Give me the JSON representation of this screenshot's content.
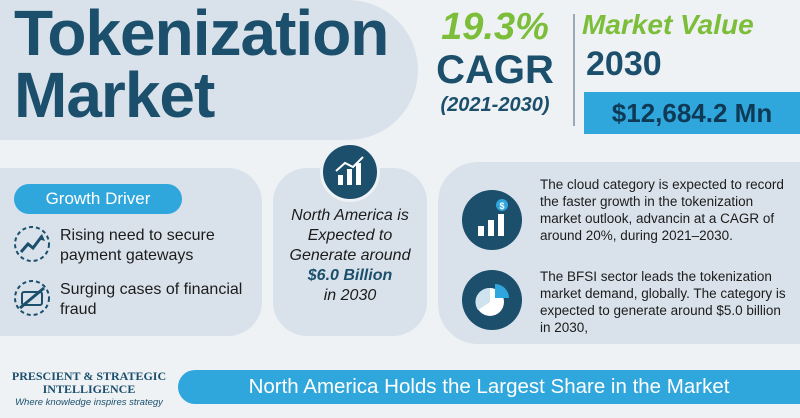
{
  "header": {
    "title": "Tokenization Market"
  },
  "cagr": {
    "percent": "19.3%",
    "label": "CAGR",
    "period": "(2021-2030)"
  },
  "market_value": {
    "label": "Market Value",
    "year": "2030",
    "amount": "$12,684.2 Mn"
  },
  "growth_driver": {
    "heading": "Growth Driver",
    "items": [
      {
        "icon": "rising-chart-icon",
        "text": "Rising need to secure payment gateways"
      },
      {
        "icon": "fraud-alert-icon",
        "text": "Surging cases of financial fraud"
      }
    ]
  },
  "region": {
    "icon": "bar-chart-icon",
    "text": "North America is Expected to Generate around",
    "amount": "$6.0 Billion",
    "suffix": "in 2030"
  },
  "insights": [
    {
      "icon": "growth-dollar-icon",
      "text": "The cloud category is expected to record the faster growth in the tokenization market outlook, advancin at a CAGR of around 20%, during 2021–2030."
    },
    {
      "icon": "pie-chart-icon",
      "text": "The BFSI sector leads the tokenization market demand, globally. The category is expected to generate around $5.0 billion in 2030,"
    }
  ],
  "footer": {
    "logo_name": "PRESCIENT & STRATEGIC INTELLIGENCE",
    "logo_tagline": "Where knowledge inspires strategy",
    "banner": "North America Holds the Largest Share in the Market"
  },
  "colors": {
    "navy": "#1b4f6c",
    "green": "#7cbe3a",
    "blue": "#2fa6dc",
    "panel": "#d9e2ea",
    "background": "#eef2f5"
  }
}
